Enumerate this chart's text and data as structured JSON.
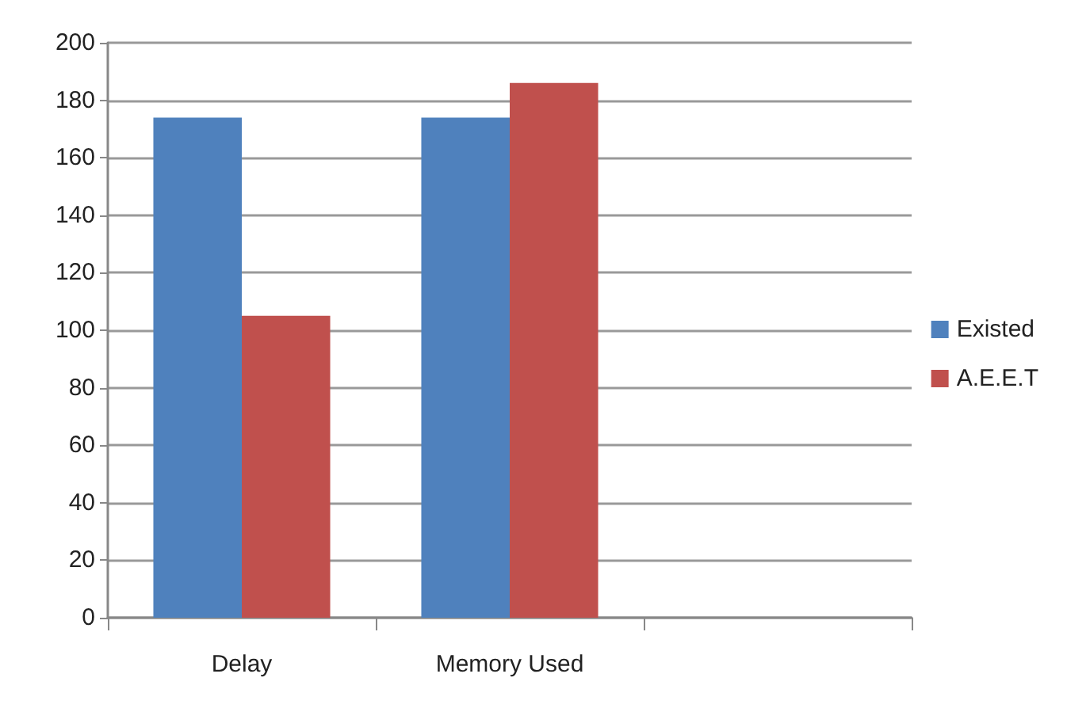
{
  "chart_data": {
    "type": "bar",
    "categories": [
      "Delay",
      "Memory Used",
      null
    ],
    "series": [
      {
        "name": "Existed",
        "color": "#4f81bd",
        "values": [
          174,
          174,
          null
        ]
      },
      {
        "name": "A.E.E.T",
        "color": "#c0504d",
        "values": [
          105,
          186,
          null
        ]
      }
    ],
    "ylim": [
      0,
      200
    ],
    "yticks": [
      0,
      20,
      40,
      60,
      80,
      100,
      120,
      140,
      160,
      180,
      200
    ],
    "grid": "y",
    "legend": "right"
  }
}
